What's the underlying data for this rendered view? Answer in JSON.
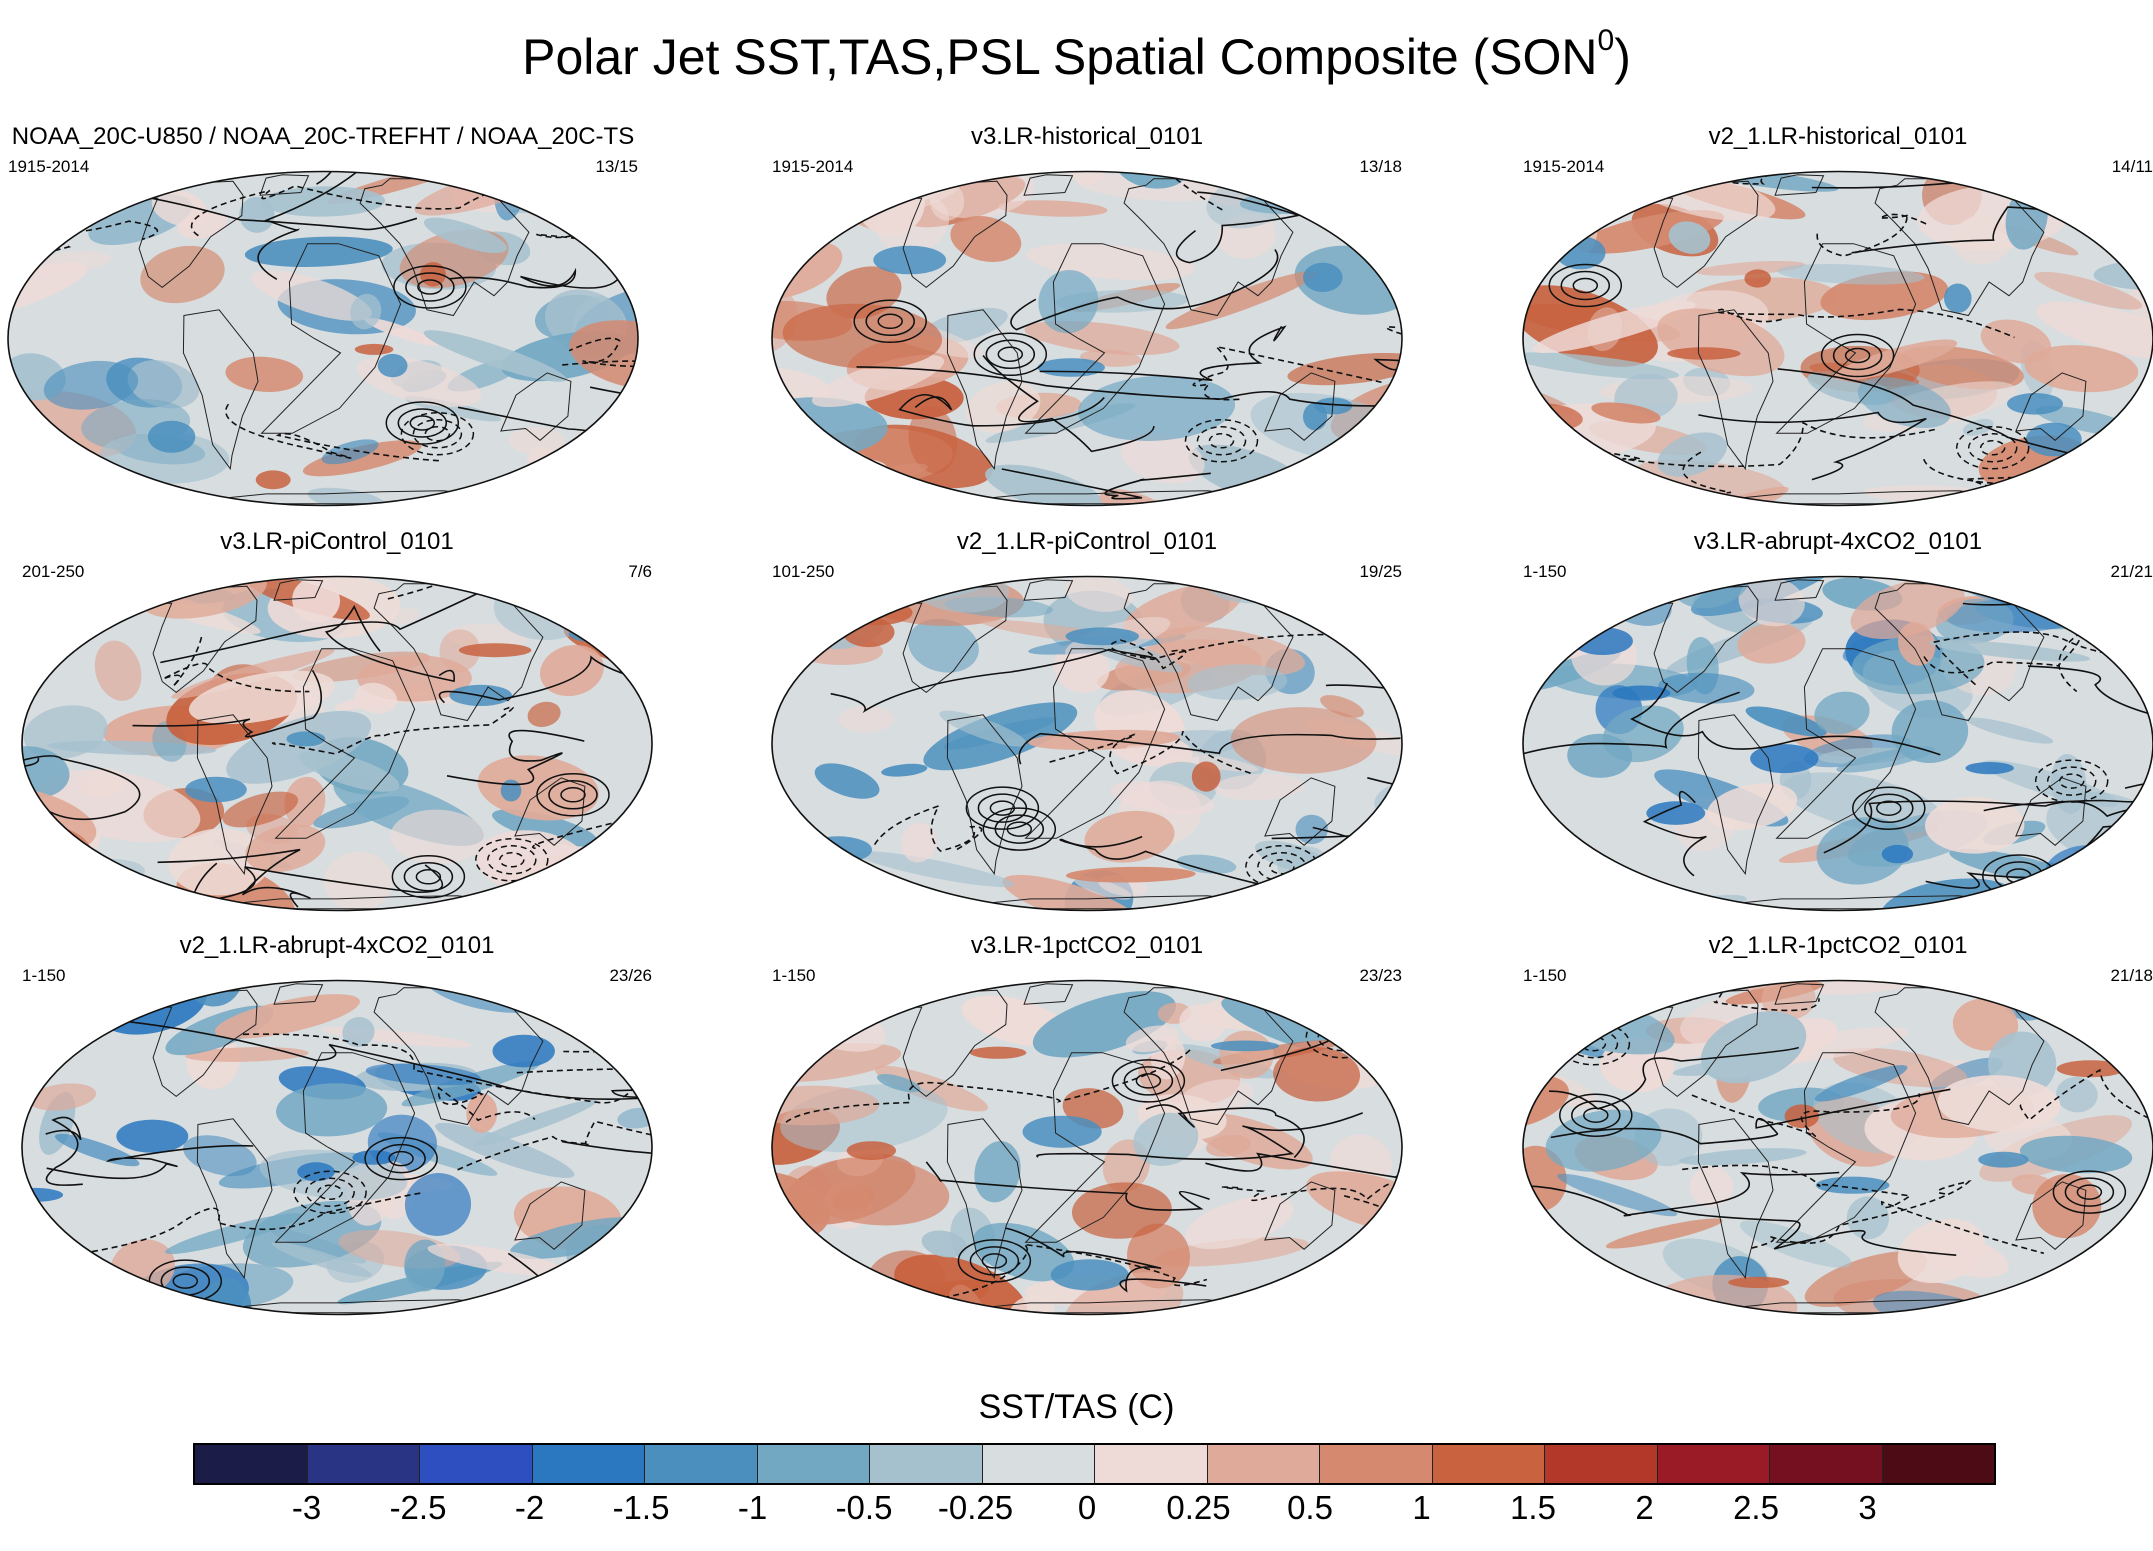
{
  "figure": {
    "title_main": "Polar Jet SST,TAS,PSL Spatial Composite (SON",
    "title_sup": "0",
    "title_end": ")"
  },
  "panels": [
    {
      "title": "NOAA_20C-U850 / NOAA_20C-TREFHT / NOAA_20C-TS",
      "years": "1915-2014",
      "count": "13/15",
      "dominant": "mixed"
    },
    {
      "title": "v3.LR-historical_0101",
      "years": "1915-2014",
      "count": "13/18",
      "dominant": "warm"
    },
    {
      "title": "v2_1.LR-historical_0101",
      "years": "1915-2014",
      "count": "14/11",
      "dominant": "warm"
    },
    {
      "title": "v3.LR-piControl_0101",
      "years": "201-250",
      "count": "7/6",
      "dominant": "warm"
    },
    {
      "title": "v2_1.LR-piControl_0101",
      "years": "101-250",
      "count": "19/25",
      "dominant": "mixed"
    },
    {
      "title": "v3.LR-abrupt-4xCO2_0101",
      "years": "1-150",
      "count": "21/21",
      "dominant": "cool"
    },
    {
      "title": "v2_1.LR-abrupt-4xCO2_0101",
      "years": "1-150",
      "count": "23/26",
      "dominant": "cool"
    },
    {
      "title": "v3.LR-1pctCO2_0101",
      "years": "1-150",
      "count": "23/23",
      "dominant": "warm"
    },
    {
      "title": "v2_1.LR-1pctCO2_0101",
      "years": "1-150",
      "count": "21/18",
      "dominant": "mixed"
    }
  ],
  "colorbar": {
    "title": "SST/TAS (C)",
    "labels": [
      "-3",
      "-2.5",
      "-2",
      "-1.5",
      "-1",
      "-0.5",
      "-0.25",
      "0",
      "0.25",
      "0.5",
      "1",
      "1.5",
      "2",
      "2.5",
      "3"
    ],
    "colors": [
      "#1b1c47",
      "#2a3484",
      "#2d4fc0",
      "#2c78c0",
      "#4a8fbe",
      "#73a8c3",
      "#a6c1ce",
      "#d8dde0",
      "#eedbd7",
      "#dfaa99",
      "#d58a70",
      "#c8623f",
      "#b3382a",
      "#9a1a26",
      "#74101f",
      "#4d0c15"
    ]
  }
}
